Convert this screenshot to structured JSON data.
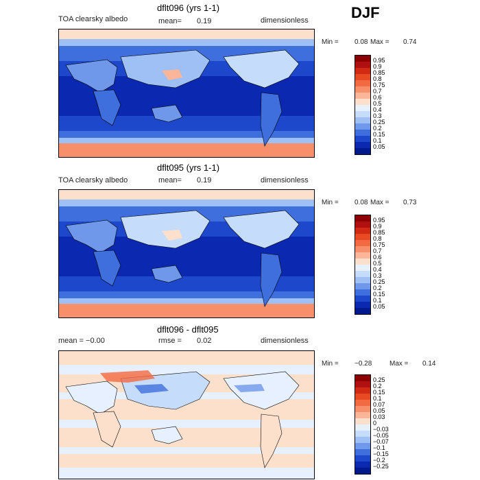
{
  "season": "DJF",
  "panels": [
    {
      "title": "dflt096 (yrs 1-1)",
      "left": "TOA clearsky albedo",
      "mid_label": "mean=",
      "mid_value": "0.19",
      "right": "dimensionless",
      "min_label": "Min =",
      "min_value": "0.08",
      "max_label": "Max =",
      "max_value": "0.74",
      "levels": [
        "0.95",
        "0.9",
        "0.85",
        "0.8",
        "0.75",
        "0.7",
        "0.6",
        "0.5",
        "0.4",
        "0.3",
        "0.25",
        "0.2",
        "0.15",
        "0.1",
        "0.05"
      ],
      "colors": [
        "#8c0000",
        "#b01010",
        "#d02a14",
        "#e84a24",
        "#f26a42",
        "#f7906a",
        "#fbb598",
        "#fde0cc",
        "#e6f0ff",
        "#c6dcfb",
        "#9fc0f5",
        "#6f98ea",
        "#3f6fdd",
        "#1d48cc",
        "#0a28b0",
        "#001a8c"
      ]
    },
    {
      "title": "dflt095 (yrs 1-1)",
      "left": "TOA clearsky albedo",
      "mid_label": "mean=",
      "mid_value": "0.19",
      "right": "dimensionless",
      "min_label": "Min =",
      "min_value": "0.08",
      "max_label": "Max =",
      "max_value": "0.73",
      "levels": [
        "0.95",
        "0.9",
        "0.85",
        "0.8",
        "0.75",
        "0.7",
        "0.6",
        "0.5",
        "0.4",
        "0.3",
        "0.25",
        "0.2",
        "0.15",
        "0.1",
        "0.05"
      ],
      "colors": [
        "#8c0000",
        "#b01010",
        "#d02a14",
        "#e84a24",
        "#f26a42",
        "#f7906a",
        "#fbb598",
        "#fde0cc",
        "#e6f0ff",
        "#c6dcfb",
        "#9fc0f5",
        "#6f98ea",
        "#3f6fdd",
        "#1d48cc",
        "#0a28b0",
        "#001a8c"
      ]
    },
    {
      "title": "dflt096 - dflt095",
      "left": "mean =  −0.00",
      "mid_label": "rmse =",
      "mid_value": "0.02",
      "right": "dimensionless",
      "min_label": "Min =",
      "min_value": "−0.28",
      "max_label": "Max =",
      "max_value": "0.14",
      "levels": [
        "0.25",
        "0.2",
        "0.15",
        "0.1",
        "0.07",
        "0.05",
        "0.03",
        "0",
        "−0.03",
        "−0.05",
        "−0.07",
        "−0.1",
        "−0.15",
        "−0.2",
        "−0.25"
      ],
      "colors": [
        "#8c0000",
        "#b01010",
        "#d02a14",
        "#e84a24",
        "#f26a42",
        "#f7906a",
        "#fbb598",
        "#fde0cc",
        "#e6f0ff",
        "#c6dcfb",
        "#9fc0f5",
        "#6f98ea",
        "#3f6fdd",
        "#1d48cc",
        "#0a28b0",
        "#001a8c"
      ]
    }
  ]
}
